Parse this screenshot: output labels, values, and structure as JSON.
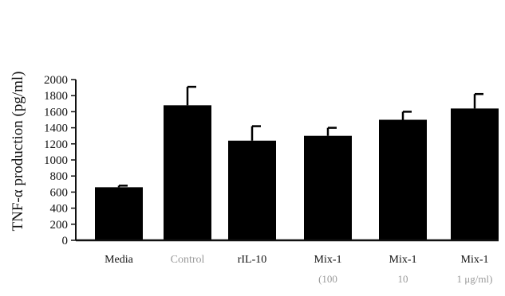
{
  "chart_data": {
    "type": "bar",
    "ylabel": "TNF-α production (pg/ml)",
    "ylim": [
      0,
      2000
    ],
    "yticks": [
      "0",
      "200",
      "400",
      "600",
      "800",
      "1000",
      "1200",
      "1400",
      "1600",
      "1800",
      "2000"
    ],
    "categories": [
      "Media",
      "Control",
      "rIL-10",
      "Mix-1",
      "Mix-1",
      "Mix-1"
    ],
    "category_sublabels": [
      "",
      "",
      "",
      "(100",
      "10",
      "1 μg/ml)"
    ],
    "values": [
      660,
      1680,
      1240,
      1300,
      1500,
      1640
    ],
    "errors": [
      20,
      230,
      180,
      100,
      100,
      180
    ],
    "bar_color": "#000000",
    "grid": false
  }
}
